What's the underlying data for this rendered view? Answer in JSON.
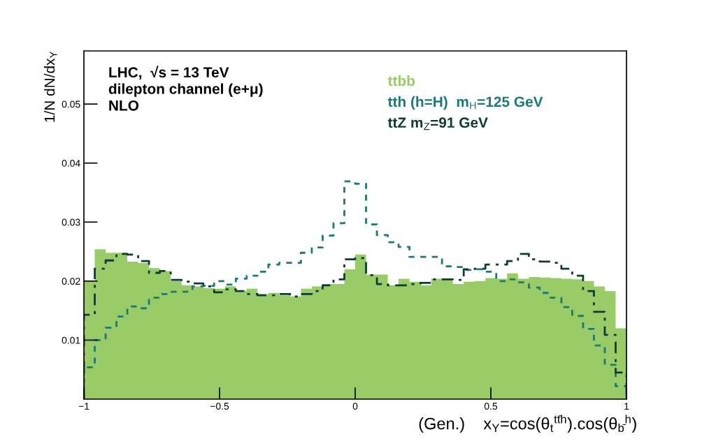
{
  "chart_data": {
    "type": "histogram",
    "xlabel": "(Gen.)    x$_{Y}$=cos(θ$_{t}$$^{tt̄h}$).cos(θ$_{b̄}$$^{h}$)",
    "ylabel": "1/N dN/dx$_{Y}$",
    "annotations": [
      "LHC,  √s = 13 TeV",
      "dilepton channel (e+μ)",
      "NLO"
    ],
    "bins": [
      -1.0,
      -0.96,
      -0.92,
      -0.88,
      -0.84,
      -0.8,
      -0.76,
      -0.72,
      -0.68,
      -0.64,
      -0.6,
      -0.56,
      -0.52,
      -0.48,
      -0.44,
      -0.4,
      -0.36,
      -0.32,
      -0.28,
      -0.24,
      -0.2,
      -0.16,
      -0.12,
      -0.08,
      -0.04,
      0.0,
      0.04,
      0.08,
      0.12,
      0.16,
      0.2,
      0.24,
      0.28,
      0.32,
      0.36,
      0.4,
      0.44,
      0.48,
      0.52,
      0.56,
      0.6,
      0.64,
      0.68,
      0.72,
      0.76,
      0.8,
      0.84,
      0.88,
      0.92,
      0.96,
      1.0
    ],
    "series": [
      {
        "name": "ttbb",
        "color": "#99cc66",
        "values": [
          0.02,
          0.0254,
          0.0248,
          0.0248,
          0.0233,
          0.0231,
          0.0222,
          0.0217,
          0.02,
          0.0193,
          0.0191,
          0.0188,
          0.0187,
          0.0191,
          0.0184,
          0.0187,
          0.0178,
          0.018,
          0.0176,
          0.0174,
          0.0187,
          0.0191,
          0.0195,
          0.0195,
          0.022,
          0.0245,
          0.0211,
          0.0211,
          0.0193,
          0.0204,
          0.0199,
          0.0193,
          0.0204,
          0.0204,
          0.0195,
          0.0199,
          0.02,
          0.0205,
          0.0204,
          0.0213,
          0.0204,
          0.0207,
          0.0206,
          0.0205,
          0.0204,
          0.0203,
          0.02,
          0.0191,
          0.0183,
          0.012
        ]
      },
      {
        "name": "tth (h=H)  m$_{H}$=125 GeV",
        "line_style": "dotted",
        "color": "#1a7a78",
        "values": [
          0.0054,
          0.01,
          0.0121,
          0.014,
          0.0157,
          0.0154,
          0.0172,
          0.0178,
          0.0182,
          0.0182,
          0.0191,
          0.0192,
          0.02,
          0.0194,
          0.0204,
          0.0209,
          0.0216,
          0.0228,
          0.0231,
          0.0231,
          0.0248,
          0.0257,
          0.0277,
          0.0298,
          0.0369,
          0.0365,
          0.0296,
          0.0278,
          0.0266,
          0.0258,
          0.0241,
          0.0241,
          0.0241,
          0.0225,
          0.0224,
          0.0219,
          0.022,
          0.0216,
          0.02,
          0.0203,
          0.0198,
          0.0189,
          0.018,
          0.0172,
          0.0156,
          0.0141,
          0.0119,
          0.0091,
          0.0058,
          0.0022
        ]
      },
      {
        "name": "ttZ m$_{Z}$=91 GeV",
        "line_style": "dashdot",
        "color": "#0d3b35",
        "values": [
          0.0143,
          0.0221,
          0.0235,
          0.0246,
          0.0245,
          0.0234,
          0.0214,
          0.0217,
          0.0202,
          0.0199,
          0.0196,
          0.0191,
          0.0181,
          0.0186,
          0.0183,
          0.0178,
          0.0176,
          0.0176,
          0.0178,
          0.0174,
          0.0178,
          0.0183,
          0.0193,
          0.0203,
          0.0237,
          0.0239,
          0.021,
          0.0195,
          0.0193,
          0.0193,
          0.0195,
          0.0197,
          0.0203,
          0.0203,
          0.0202,
          0.022,
          0.0221,
          0.0228,
          0.0228,
          0.0234,
          0.0246,
          0.0237,
          0.0233,
          0.0231,
          0.0221,
          0.0209,
          0.0183,
          0.0148,
          0.0109,
          0.0045
        ]
      }
    ],
    "xlim": [
      -1,
      1
    ],
    "xticks": [
      {
        "value": -1,
        "label": "−1"
      },
      {
        "value": -0.5,
        "label": "−0.5"
      },
      0,
      0.5,
      1
    ],
    "ylim": [
      0,
      0.059
    ],
    "yticks": [
      0.01,
      0.02,
      0.03,
      0.04,
      0.05
    ],
    "legend": "top right"
  }
}
